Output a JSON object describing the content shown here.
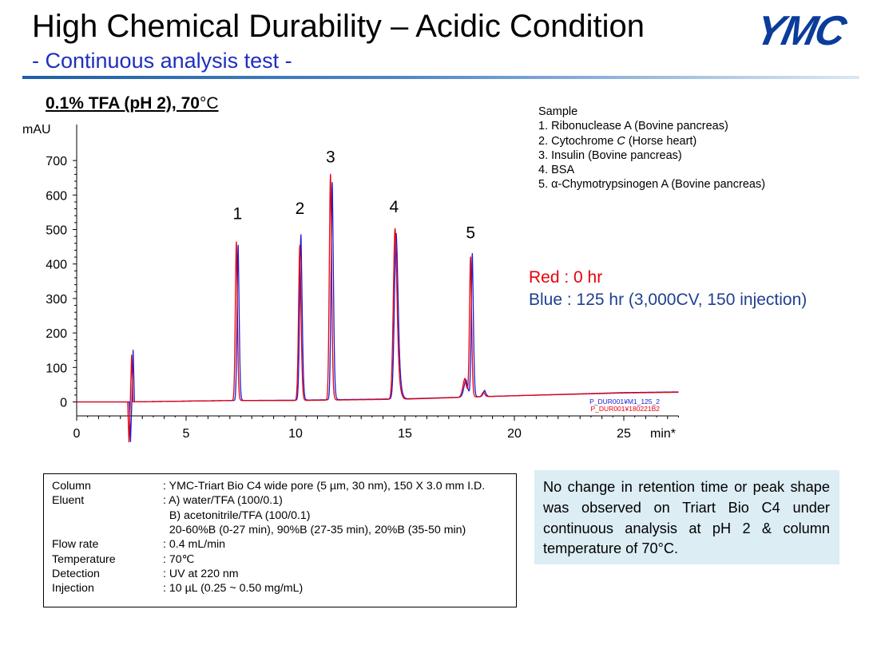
{
  "header": {
    "title": "High Chemical Durability – Acidic Condition",
    "subtitle": "- Continuous analysis test -",
    "logo_text": "YMC",
    "logo_color": "#0b3c9c"
  },
  "condition_title": {
    "main": "0.1% TFA (pH 2), 70",
    "unit": "°C"
  },
  "sample": {
    "heading": "Sample",
    "items": [
      {
        "prefix": "1. Ribonuclease A  (Bovine pancreas)",
        "italic": "",
        "suffix": ""
      },
      {
        "prefix": "2. Cytochrome ",
        "italic": "C",
        "suffix": " (Horse heart)"
      },
      {
        "prefix": "3. Insulin (Bovine pancreas)",
        "italic": "",
        "suffix": ""
      },
      {
        "prefix": "4. BSA",
        "italic": "",
        "suffix": ""
      },
      {
        "prefix": "5. α-Chymotrypsinogen A (Bovine pancreas)",
        "italic": "",
        "suffix": ""
      }
    ]
  },
  "legend": {
    "red": "Red : 0 hr",
    "blue": "Blue : 125 hr (3,000CV, 150 injection)"
  },
  "chart_data": {
    "type": "line",
    "xlabel": "min*",
    "ylabel": "mAU",
    "xlim": [
      0,
      27.5
    ],
    "ylim": [
      -125,
      800
    ],
    "xticks": [
      0,
      5,
      10,
      15,
      20,
      25
    ],
    "yticks": [
      0,
      100,
      200,
      300,
      400,
      500,
      600,
      700
    ],
    "grid": false,
    "peak_labels": [
      {
        "text": "1",
        "x": 7.35,
        "y": 530
      },
      {
        "text": "2",
        "x": 10.2,
        "y": 545
      },
      {
        "text": "3",
        "x": 11.6,
        "y": 695
      },
      {
        "text": "4",
        "x": 14.5,
        "y": 550
      },
      {
        "text": "5",
        "x": 18.0,
        "y": 475
      }
    ],
    "file_labels": [
      {
        "text": "P_DUR001¥M1_125_2",
        "color": "#1b1bd6"
      },
      {
        "text": "P_DUR001¥180221B2",
        "color": "#e8000b"
      }
    ],
    "series": [
      {
        "color": "#e8000b",
        "baseline": [
          [
            0,
            0
          ],
          [
            2.3,
            0
          ],
          [
            7.0,
            4
          ],
          [
            10.0,
            4
          ],
          [
            15.0,
            8
          ],
          [
            20.0,
            18
          ],
          [
            25.0,
            26
          ],
          [
            27.5,
            28
          ]
        ],
        "spike": {
          "x": 2.45,
          "low": -120,
          "high": 140,
          "width": 0.12
        },
        "peaks": [
          {
            "rt": 7.3,
            "height": 460,
            "sigma": 0.05,
            "tail": 0.06
          },
          {
            "rt": 10.2,
            "height": 450,
            "sigma": 0.06,
            "tail": 0.07
          },
          {
            "rt": 11.6,
            "height": 655,
            "sigma": 0.055,
            "tail": 0.08
          },
          {
            "rt": 14.55,
            "height": 495,
            "sigma": 0.08,
            "tail": 0.35
          },
          {
            "rt": 17.75,
            "height": 55,
            "sigma": 0.1,
            "tail": 0.05
          },
          {
            "rt": 18.0,
            "height": 405,
            "sigma": 0.05,
            "tail": 0.07
          },
          {
            "rt": 18.6,
            "height": 14,
            "sigma": 0.07,
            "tail": 0.03
          }
        ]
      },
      {
        "color": "#1b1bd6",
        "baseline": [
          [
            0,
            0
          ],
          [
            2.3,
            0
          ],
          [
            7.0,
            4
          ],
          [
            10.0,
            5
          ],
          [
            15.0,
            9
          ],
          [
            20.0,
            18
          ],
          [
            25.0,
            27
          ],
          [
            27.5,
            29
          ]
        ],
        "spike": {
          "x": 2.52,
          "low": -115,
          "high": 150,
          "width": 0.12
        },
        "peaks": [
          {
            "rt": 7.38,
            "height": 450,
            "sigma": 0.05,
            "tail": 0.06
          },
          {
            "rt": 10.25,
            "height": 480,
            "sigma": 0.06,
            "tail": 0.07
          },
          {
            "rt": 11.68,
            "height": 630,
            "sigma": 0.055,
            "tail": 0.08
          },
          {
            "rt": 14.6,
            "height": 480,
            "sigma": 0.08,
            "tail": 0.35
          },
          {
            "rt": 17.8,
            "height": 50,
            "sigma": 0.1,
            "tail": 0.05
          },
          {
            "rt": 18.08,
            "height": 415,
            "sigma": 0.05,
            "tail": 0.07
          },
          {
            "rt": 18.65,
            "height": 18,
            "sigma": 0.07,
            "tail": 0.03
          }
        ]
      }
    ]
  },
  "conditions": [
    {
      "label": "Column",
      "value": ": YMC-Triart Bio C4 wide pore (5 µm, 30 nm), 150 X 3.0 mm I.D."
    },
    {
      "label": "Eluent",
      "value": ": A) water/TFA (100/0.1)"
    },
    {
      "label": "",
      "value": "  B) acetonitrile/TFA (100/0.1)"
    },
    {
      "label": "",
      "value": "  20-60%B (0-27 min), 90%B (27-35 min), 20%B (35-50 min)"
    },
    {
      "label": "Flow rate",
      "value": ": 0.4 mL/min"
    },
    {
      "label": "Temperature",
      "value": ": 70℃"
    },
    {
      "label": "Detection",
      "value": ": UV at 220 nm"
    },
    {
      "label": "Injection",
      "value": ": 10 µL (0.25 ~ 0.50 mg/mL)"
    }
  ],
  "note": "No change in retention time or peak shape was observed on Triart Bio C4 under continuous analysis at pH 2 & column temperature of 70°C."
}
